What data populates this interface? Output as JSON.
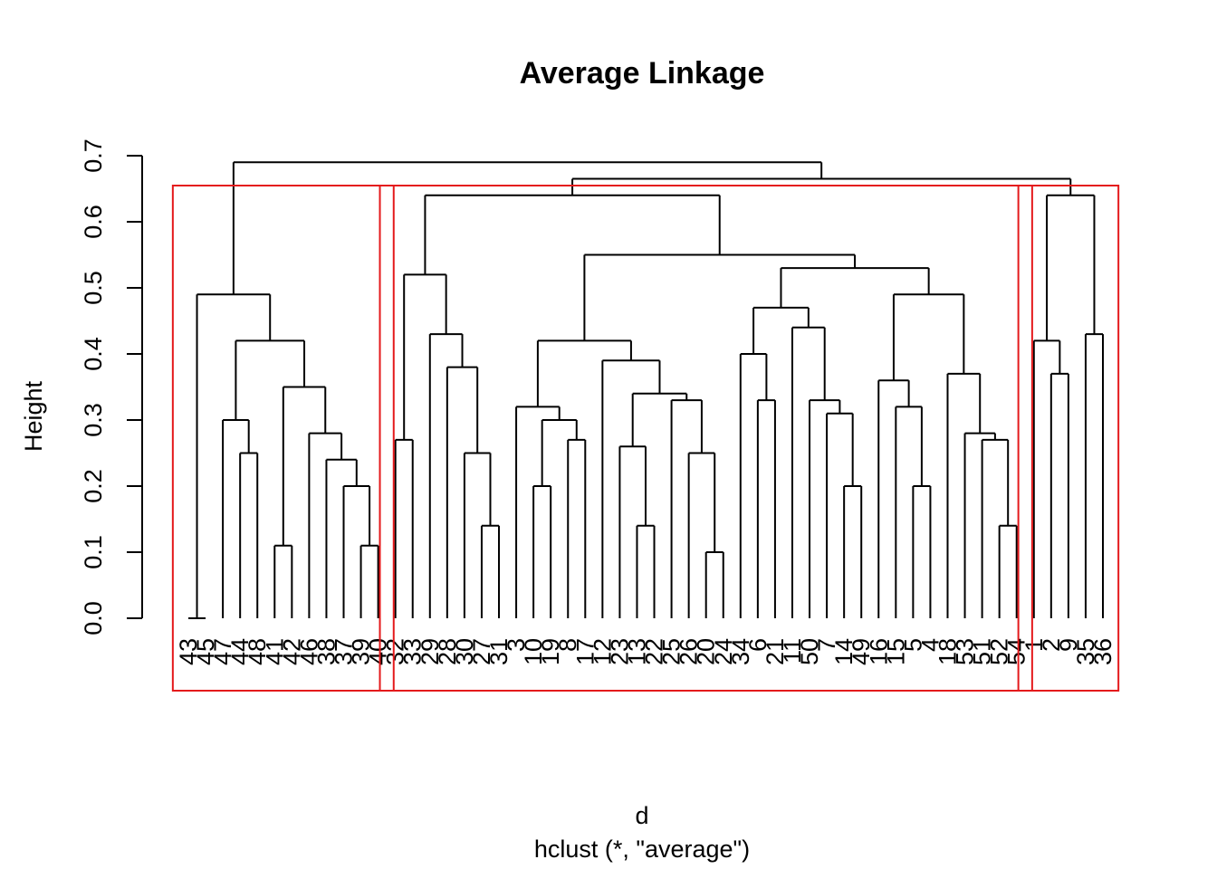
{
  "chart_data": {
    "type": "dendrogram",
    "title": "Average Linkage",
    "xlabel": "d",
    "sub": "hclust (*, \"average\")",
    "ylabel": "Height",
    "ylim": [
      0,
      0.7
    ],
    "yticks": [
      "0.0",
      "0.1",
      "0.2",
      "0.3",
      "0.4",
      "0.5",
      "0.6",
      "0.7"
    ],
    "leaves": [
      "43",
      "45",
      "47",
      "44",
      "48",
      "41",
      "42",
      "46",
      "38",
      "37",
      "39",
      "40",
      "32",
      "33",
      "29",
      "28",
      "30",
      "27",
      "31",
      "3",
      "10",
      "19",
      "8",
      "17",
      "12",
      "23",
      "13",
      "22",
      "25",
      "26",
      "20",
      "24",
      "34",
      "6",
      "21",
      "11",
      "50",
      "7",
      "14",
      "49",
      "16",
      "15",
      "5",
      "4",
      "18",
      "53",
      "51",
      "52",
      "54",
      "1",
      "2",
      "9",
      "35",
      "36"
    ],
    "merges": [
      [
        -1,
        -2,
        0.0
      ],
      [
        -10,
        -11,
        0.11
      ],
      [
        -12,
        -13,
        0.11
      ],
      [
        -15,
        -16,
        0.25
      ],
      [
        -18,
        -19,
        0.14
      ],
      [
        -22,
        -23,
        0.2
      ],
      [
        -25,
        -26,
        0.27
      ],
      [
        -27,
        -28,
        0.19
      ],
      [
        -30,
        -31,
        0.14
      ],
      [
        -33,
        -34,
        0.1
      ],
      [
        -38,
        -39,
        0.33
      ],
      [
        -42,
        -43,
        0.2
      ],
      [
        -46,
        -47,
        0.2
      ],
      [
        -51,
        -52,
        0.14
      ],
      [
        -55,
        -56,
        0.37
      ],
      [
        -14,
        4,
        0.3
      ],
      [
        -17,
        5,
        0.27
      ],
      [
        -24,
        6,
        0.27
      ],
      [
        -29,
        8,
        0.25
      ],
      [
        -32,
        10,
        0.25
      ],
      [
        -37,
        11,
        0.33
      ],
      [
        -41,
        12,
        0.3
      ],
      [
        -45,
        13,
        0.31
      ],
      [
        -50,
        14,
        0.27
      ],
      [
        -54,
        15,
        0.42
      ],
      [
        3,
        -21,
        0.19
      ],
      [
        26,
        -9,
        0.24
      ],
      [
        -20,
        17,
        0.38
      ],
      [
        -36,
        21,
        0.33
      ],
      [
        -40,
        22,
        0.33
      ],
      [
        -44,
        23,
        0.36
      ],
      [
        -49,
        24,
        0.28
      ],
      [
        -48,
        32,
        0.37
      ],
      [
        7,
        -6,
        0.42
      ],
      [
        -7,
        27,
        0.28
      ],
      [
        -8,
        35,
        0.35
      ],
      [
        -57,
        25,
        0.43
      ],
      [
        -53,
        37,
        0.64
      ],
      [
        9,
        -54,
        0.0
      ],
      [
        -35,
        29,
        0.4
      ],
      [
        20,
        18,
        0.33
      ],
      [
        40,
        -35,
        0.0
      ],
      [
        36,
        -9,
        0.42
      ],
      [
        -4,
        43,
        0.49
      ],
      [
        -5,
        44,
        0.49
      ]
    ],
    "clusters": [
      {
        "leaves": [
          "43",
          "45",
          "47",
          "44",
          "48",
          "41",
          "42",
          "46",
          "38",
          "37",
          "39",
          "40"
        ]
      },
      {
        "leaves": [
          "32",
          "33",
          "29",
          "28",
          "30",
          "27",
          "31",
          "3",
          "10",
          "19",
          "8",
          "17",
          "12",
          "23",
          "13",
          "22",
          "25",
          "26",
          "20",
          "24",
          "34",
          "6",
          "21",
          "11",
          "50",
          "7",
          "14",
          "49",
          "16",
          "15",
          "5",
          "4",
          "18",
          "53",
          "51",
          "52",
          "54"
        ]
      },
      {
        "leaves": [
          "1",
          "2",
          "9",
          "35",
          "36"
        ]
      }
    ],
    "grid": false,
    "legend": "none"
  }
}
